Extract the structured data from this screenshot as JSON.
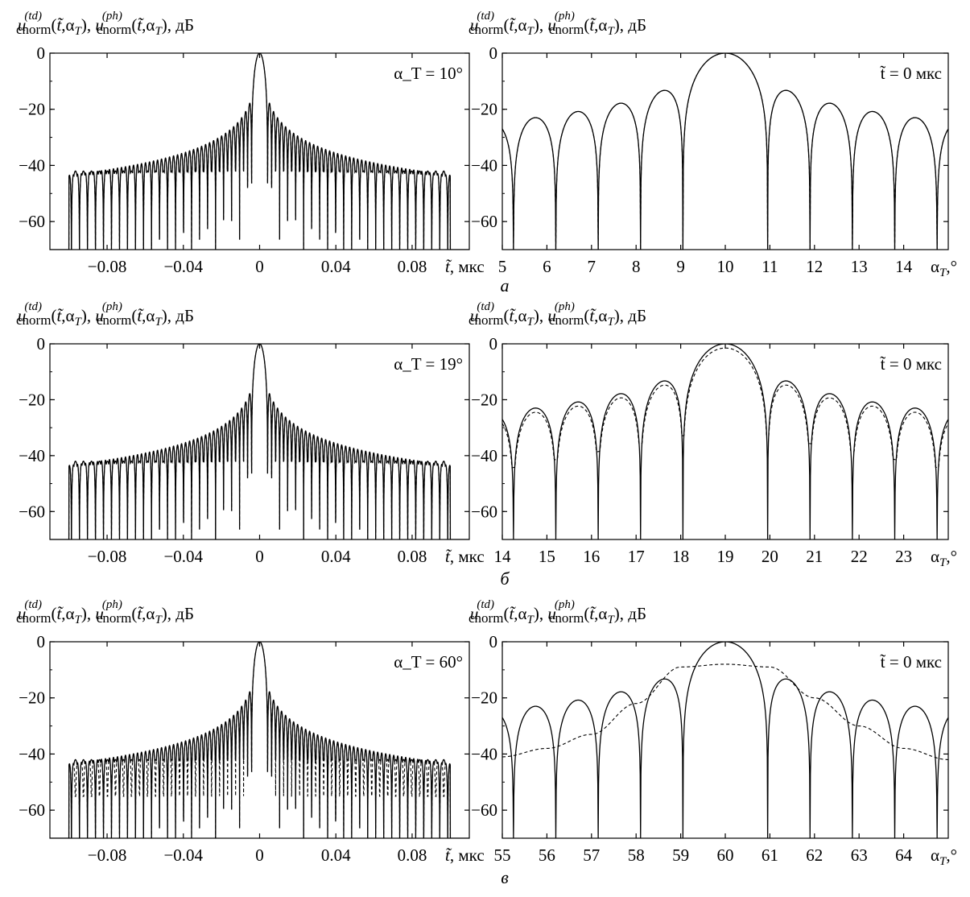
{
  "figure": {
    "row_letters": [
      "а",
      "б",
      "в"
    ]
  },
  "chart_data": [
    {
      "type": "line",
      "panel": "a-left",
      "ylabel": "u_cnorm^(td)(t̃,α_T), u_cnorm^(ph)(t̃,α_T), дБ",
      "xlabel": "t̃, мкс",
      "annotation": "α_T = 10°",
      "xlim": [
        -0.11,
        0.11
      ],
      "ylim": [
        -70,
        0
      ],
      "xticks": [
        -0.08,
        -0.04,
        0,
        0.04,
        0.08
      ],
      "xtick_labels": [
        "−0.08",
        "−0.04",
        "0",
        "0.04",
        "0.08"
      ],
      "yticks": [
        0,
        -20,
        -40,
        -60
      ],
      "ytick_labels": [
        "0",
        "−20",
        "−40",
        "−60"
      ],
      "series": [
        {
          "style": "solid",
          "model": "sinc-sidelobes",
          "peak": 0,
          "envelope_floor": -42
        },
        {
          "style": "dashed",
          "model": "sinc-sidelobes",
          "peak": 0,
          "envelope_floor": -42
        }
      ]
    },
    {
      "type": "line",
      "panel": "a-right",
      "ylabel": "u_cnorm^(td)(t̃,α_T), u_cnorm^(ph)(t̃,α_T), дБ",
      "xlabel": "α_T,°",
      "annotation": "t̃ = 0 мкс",
      "xlim": [
        5,
        15
      ],
      "ylim": [
        -70,
        0
      ],
      "xticks": [
        5,
        6,
        7,
        8,
        9,
        10,
        11,
        12,
        13,
        14
      ],
      "xtick_labels": [
        "5",
        "6",
        "7",
        "8",
        "9",
        "10",
        "11",
        "12",
        "13",
        "14"
      ],
      "yticks": [
        0,
        -20,
        -40,
        -60
      ],
      "ytick_labels": [
        "0",
        "−20",
        "−40",
        "−60"
      ],
      "series": [
        {
          "style": "solid",
          "center": 10,
          "peak": 0
        },
        {
          "style": "dashed",
          "center": 10,
          "peak": 0
        }
      ]
    },
    {
      "type": "line",
      "panel": "b-left",
      "ylabel": "u_cnorm^(td)(t̃,α_T), u_cnorm^(ph)(t̃,α_T), дБ",
      "xlabel": "t̃, мкс",
      "annotation": "α_T = 19°",
      "xlim": [
        -0.11,
        0.11
      ],
      "ylim": [
        -70,
        0
      ],
      "xticks": [
        -0.08,
        -0.04,
        0,
        0.04,
        0.08
      ],
      "xtick_labels": [
        "−0.08",
        "−0.04",
        "0",
        "0.04",
        "0.08"
      ],
      "yticks": [
        0,
        -20,
        -40,
        -60
      ],
      "ytick_labels": [
        "0",
        "−20",
        "−40",
        "−60"
      ],
      "series": [
        {
          "style": "solid",
          "model": "sinc-sidelobes",
          "peak": 0,
          "envelope_floor": -42
        },
        {
          "style": "dashed",
          "model": "sinc-sidelobes",
          "peak": 0,
          "envelope_floor": -42
        }
      ]
    },
    {
      "type": "line",
      "panel": "b-right",
      "ylabel": "u_cnorm^(td)(t̃,α_T), u_cnorm^(ph)(t̃,α_T), дБ",
      "xlabel": "α_T,°",
      "annotation": "t̃ = 0 мкс",
      "xlim": [
        14,
        24
      ],
      "ylim": [
        -70,
        0
      ],
      "xticks": [
        14,
        15,
        16,
        17,
        18,
        19,
        20,
        21,
        22,
        23
      ],
      "xtick_labels": [
        "14",
        "15",
        "16",
        "17",
        "18",
        "19",
        "20",
        "21",
        "22",
        "23"
      ],
      "yticks": [
        0,
        -20,
        -40,
        -60
      ],
      "ytick_labels": [
        "0",
        "−20",
        "−40",
        "−60"
      ],
      "series": [
        {
          "style": "solid",
          "center": 19,
          "peak": 0
        },
        {
          "style": "dashed",
          "center": 19,
          "peak": -1.5
        }
      ]
    },
    {
      "type": "line",
      "panel": "c-left",
      "ylabel": "u_cnorm^(td)(t̃,α_T), u_cnorm^(ph)(t̃,α_T), дБ",
      "xlabel": "t̃, мкс",
      "annotation": "α_T = 60°",
      "xlim": [
        -0.11,
        0.11
      ],
      "ylim": [
        -70,
        0
      ],
      "xticks": [
        -0.08,
        -0.04,
        0,
        0.04,
        0.08
      ],
      "xtick_labels": [
        "−0.08",
        "−0.04",
        "0",
        "0.04",
        "0.08"
      ],
      "yticks": [
        0,
        -20,
        -40,
        -60
      ],
      "ytick_labels": [
        "0",
        "−20",
        "−40",
        "−60"
      ],
      "series": [
        {
          "style": "solid",
          "model": "sinc-sidelobes",
          "peak": 0,
          "envelope_floor": -42
        },
        {
          "style": "dashed",
          "model": "sinc-sidelobes",
          "peak": 0,
          "envelope_floor": -55
        }
      ]
    },
    {
      "type": "line",
      "panel": "c-right",
      "ylabel": "u_cnorm^(td)(t̃,α_T), u_cnorm^(ph)(t̃,α_T), дБ",
      "xlabel": "α_T,°",
      "annotation": "t̃ = 0 мкс",
      "xlim": [
        55,
        65
      ],
      "ylim": [
        -70,
        0
      ],
      "xticks": [
        55,
        56,
        57,
        58,
        59,
        60,
        61,
        62,
        63,
        64
      ],
      "xtick_labels": [
        "55",
        "56",
        "57",
        "58",
        "59",
        "60",
        "61",
        "62",
        "63",
        "64"
      ],
      "yticks": [
        0,
        -20,
        -40,
        -60
      ],
      "ytick_labels": [
        "0",
        "−20",
        "−40",
        "−60"
      ],
      "series": [
        {
          "style": "solid",
          "center": 60,
          "peak": 0
        },
        {
          "style": "dashed",
          "center": 60,
          "peak": -8,
          "points": [
            [
              55,
              -41
            ],
            [
              56,
              -38
            ],
            [
              57,
              -33
            ],
            [
              58,
              -22
            ],
            [
              59,
              -9
            ],
            [
              60,
              -8
            ],
            [
              61,
              -9
            ],
            [
              62,
              -20
            ],
            [
              63,
              -30
            ],
            [
              64,
              -38
            ],
            [
              65,
              -42
            ]
          ]
        }
      ]
    }
  ]
}
